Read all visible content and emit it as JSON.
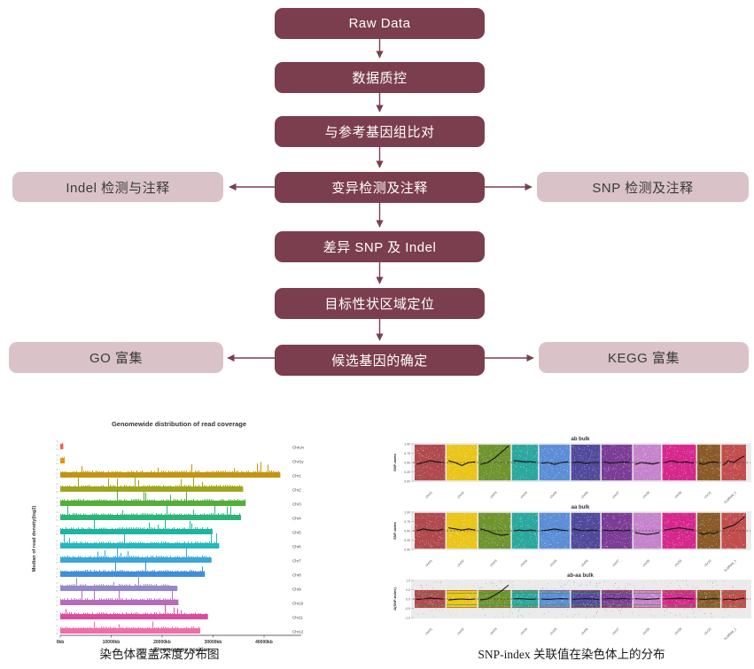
{
  "flowchart": {
    "center_nodes": [
      {
        "label": "Raw Data"
      },
      {
        "label": "数据质控"
      },
      {
        "label": "与参考基因组比对"
      },
      {
        "label": "变异检测及注释"
      },
      {
        "label": "差异 SNP 及 Indel"
      },
      {
        "label": "目标性状区域定位"
      },
      {
        "label": "候选基因的确定"
      }
    ],
    "side_nodes": [
      {
        "label": "Indel 检测与注释"
      },
      {
        "label": "SNP 检测及注释"
      },
      {
        "label": "GO 富集"
      },
      {
        "label": "KEGG 富集"
      }
    ],
    "colors": {
      "primary": "#7B3E4E",
      "secondary": "#D9C3C8",
      "arrow": "#7B3E4E"
    }
  },
  "captions": {
    "left": "染色体覆盖深度分布图",
    "right": "SNP-index 关联值在染色体上的分布"
  },
  "chart_data": [
    {
      "type": "bar",
      "title": "Genomewide distribution of read coverage",
      "xlabel": "Chromosome position",
      "ylabel": "Median of read density(log2)",
      "orientation": "horizontal",
      "x_ticks": [
        "0kb",
        "10000kb",
        "20000kb",
        "30000kb",
        "40000kb"
      ],
      "x_tick_values": [
        0,
        10000,
        20000,
        30000,
        40000
      ],
      "xlim": [
        0,
        44000
      ],
      "categories": [
        "ChrUn",
        "ChrSy",
        "Chr1",
        "Chr2",
        "Chr3",
        "Chr4",
        "Chr5",
        "Chr6",
        "Chr7",
        "Chr8",
        "Chr9",
        "Chr10",
        "Chr11",
        "Chr12"
      ],
      "values_kb": [
        600,
        900,
        43200,
        35900,
        36400,
        35500,
        29900,
        31200,
        29700,
        28400,
        23000,
        23200,
        29000,
        27500
      ],
      "colors": [
        "#E8645A",
        "#E6920E",
        "#C3940F",
        "#A0A61E",
        "#53AE3A",
        "#2DB377",
        "#1CB4A2",
        "#27B6BE",
        "#3AA6DC",
        "#3E8FD8",
        "#9489CC",
        "#B56CBA",
        "#D84D9F",
        "#F06DA8"
      ]
    },
    {
      "type": "scatter",
      "title": "ab bulk",
      "ylabel": "SNP-index",
      "y_ticks": [
        "1.00",
        "0.75",
        "0.50",
        "0.25",
        "0.00"
      ],
      "ylim": [
        0,
        1
      ],
      "hline": 0.5,
      "categories": [
        "chr01",
        "chr02",
        "chr03",
        "chr04",
        "chr05",
        "chr06",
        "chr07",
        "chr08",
        "chr09",
        "chr10",
        "Scaffold_1"
      ],
      "panel_colors": [
        "#B04A4E",
        "#E9C519",
        "#6F9430",
        "#2AA89E",
        "#5B8ED6",
        "#514A9C",
        "#7C3D96",
        "#C583CC",
        "#D6288C",
        "#8A5A28",
        "#C24D4D"
      ],
      "trend": [
        [
          0.45,
          0.5,
          0.55,
          0.52,
          0.5
        ],
        [
          0.55,
          0.5,
          0.42,
          0.5,
          0.52
        ],
        [
          0.45,
          0.5,
          0.62,
          0.78,
          0.95
        ],
        [
          0.55,
          0.54,
          0.52,
          0.53,
          0.5
        ],
        [
          0.48,
          0.5,
          0.45,
          0.5,
          0.52
        ],
        [
          0.5,
          0.52,
          0.47,
          0.5,
          0.5
        ],
        [
          0.52,
          0.48,
          0.5,
          0.52,
          0.5
        ],
        [
          0.45,
          0.5,
          0.48,
          0.46,
          0.5
        ],
        [
          0.5,
          0.55,
          0.5,
          0.52,
          0.48
        ],
        [
          0.48,
          0.45,
          0.5,
          0.52,
          0.5
        ],
        [
          0.42,
          0.55,
          0.5,
          0.6,
          0.68
        ]
      ]
    },
    {
      "type": "scatter",
      "title": "aa bulk",
      "ylabel": "SNP-index",
      "y_ticks": [
        "1.00",
        "0.75",
        "0.50",
        "0.25",
        "0.00"
      ],
      "ylim": [
        0,
        1
      ],
      "hline": 0.5,
      "categories": [
        "chr01",
        "chr02",
        "chr03",
        "chr04",
        "chr05",
        "chr06",
        "chr07",
        "chr08",
        "chr09",
        "chr10",
        "Scaffold_1"
      ],
      "panel_colors": [
        "#B04A4E",
        "#E9C519",
        "#6F9430",
        "#2AA89E",
        "#5B8ED6",
        "#514A9C",
        "#7C3D96",
        "#C583CC",
        "#D6288C",
        "#8A5A28",
        "#C24D4D"
      ],
      "trend": [
        [
          0.5,
          0.55,
          0.52,
          0.5,
          0.55
        ],
        [
          0.58,
          0.55,
          0.52,
          0.55,
          0.52
        ],
        [
          0.55,
          0.5,
          0.42,
          0.38,
          0.4
        ],
        [
          0.5,
          0.52,
          0.5,
          0.52,
          0.5
        ],
        [
          0.5,
          0.52,
          0.55,
          0.52,
          0.5
        ],
        [
          0.55,
          0.52,
          0.5,
          0.52,
          0.5
        ],
        [
          0.52,
          0.5,
          0.52,
          0.5,
          0.52
        ],
        [
          0.45,
          0.42,
          0.4,
          0.42,
          0.45
        ],
        [
          0.52,
          0.55,
          0.58,
          0.55,
          0.52
        ],
        [
          0.45,
          0.4,
          0.45,
          0.42,
          0.48
        ],
        [
          0.55,
          0.6,
          0.65,
          0.75,
          0.88
        ]
      ]
    },
    {
      "type": "scatter",
      "title": "ab-aa bulk",
      "ylabel": "Δ(SNP-index)",
      "y_ticks": [
        "1.0",
        "0.5",
        "0.0",
        "-0.5",
        "-1.0"
      ],
      "ylim": [
        -1,
        1
      ],
      "hline": 0,
      "threshold_lines": {
        "green": 0.3,
        "red": 0.45,
        "green_color": "#3A9A3A",
        "red_color": "#D04038"
      },
      "categories": [
        "chr01",
        "chr02",
        "chr03",
        "chr04",
        "chr05",
        "chr06",
        "chr07",
        "chr08",
        "chr09",
        "chr10",
        "Scaffold_1"
      ],
      "panel_colors": [
        "#B04A4E",
        "#E9C519",
        "#6F9430",
        "#2AA89E",
        "#5B8ED6",
        "#514A9C",
        "#7C3D96",
        "#C583CC",
        "#D6288C",
        "#8A5A28",
        "#C24D4D"
      ],
      "trend": [
        [
          -0.02,
          0.0,
          0.05,
          0.02,
          0.0
        ],
        [
          -0.05,
          -0.02,
          0.0,
          -0.03,
          0.0
        ],
        [
          -0.05,
          0.0,
          0.2,
          0.45,
          0.75
        ],
        [
          0.0,
          0.02,
          0.0,
          -0.02,
          0.0
        ],
        [
          0.0,
          -0.02,
          0.0,
          0.02,
          0.0
        ],
        [
          -0.02,
          0.0,
          0.02,
          0.0,
          -0.02
        ],
        [
          0.0,
          0.02,
          0.0,
          0.02,
          0.0
        ],
        [
          0.02,
          0.0,
          -0.02,
          0.0,
          0.02
        ],
        [
          0.0,
          0.02,
          0.05,
          0.02,
          0.0
        ],
        [
          0.0,
          -0.02,
          0.0,
          0.02,
          0.0
        ],
        [
          -0.05,
          0.0,
          -0.05,
          0.0,
          0.05
        ]
      ]
    }
  ]
}
